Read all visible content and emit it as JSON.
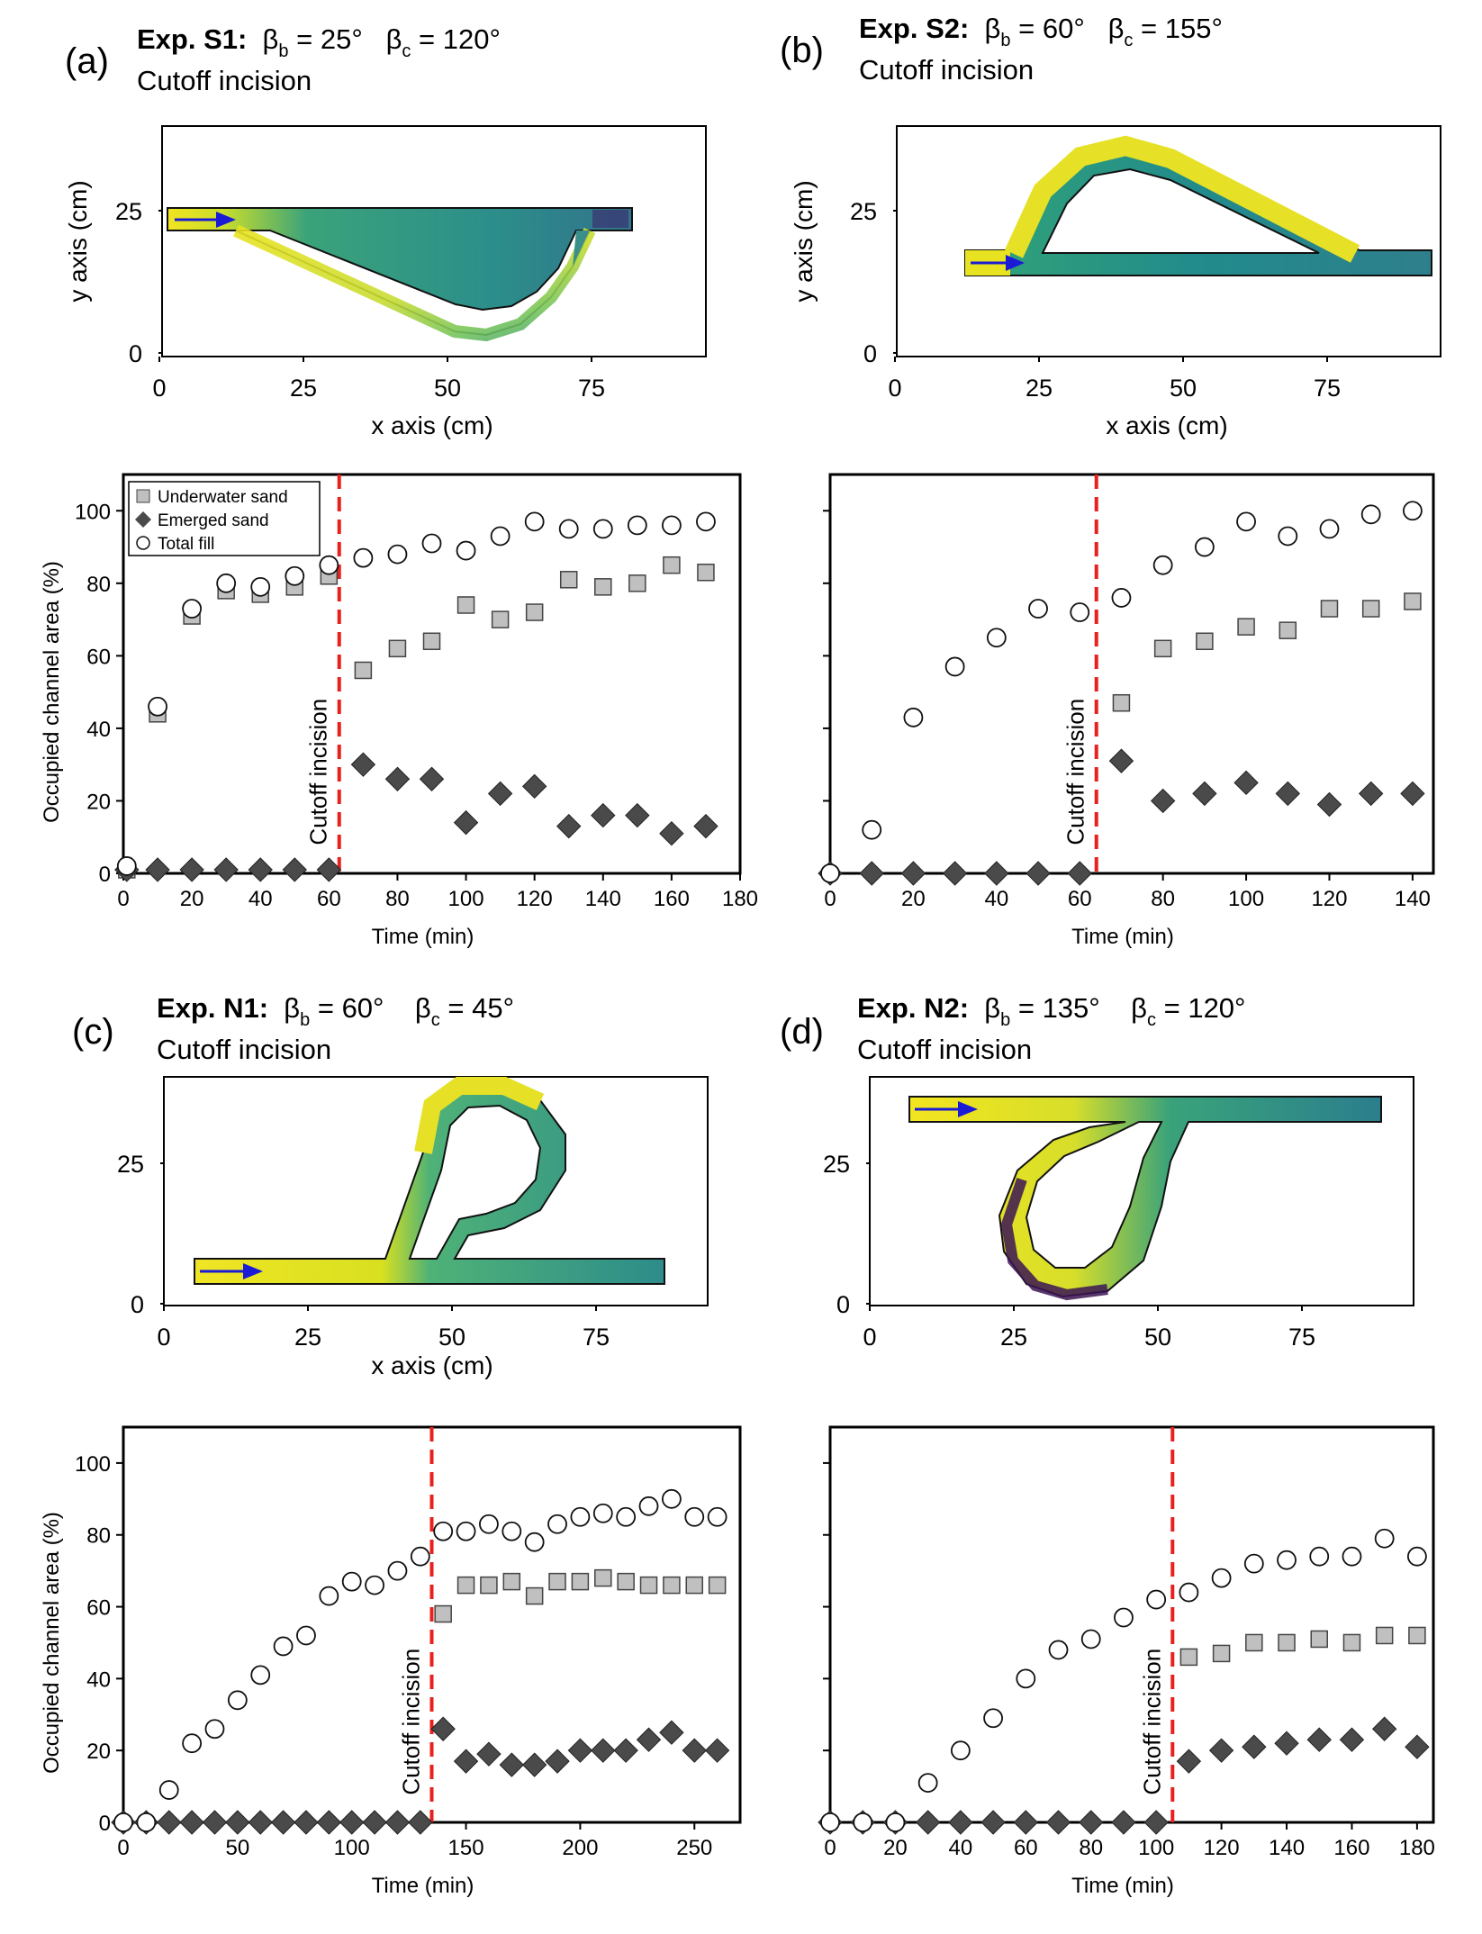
{
  "panels": [
    {
      "letter": "(a)",
      "title": {
        "exp": "Exp. S1:",
        "beta_b": "25°",
        "beta_c": "120°",
        "subtitle": "Cutoff incision"
      },
      "map": {
        "xlabel": "x axis (cm)",
        "ylabel": "y axis (cm)",
        "xticks": [
          "0",
          "25",
          "50",
          "75"
        ],
        "yticks": [
          "0",
          "25"
        ]
      }
    },
    {
      "letter": "(b)",
      "title": {
        "exp": "Exp. S2:",
        "beta_b": "60°",
        "beta_c": "155°",
        "subtitle": "Cutoff incision"
      },
      "map": {
        "xlabel": "x axis (cm)",
        "ylabel": "y axis (cm)",
        "xticks": [
          "0",
          "25",
          "50",
          "75"
        ],
        "yticks": [
          "0",
          "25"
        ]
      }
    },
    {
      "letter": "(c)",
      "title": {
        "exp": "Exp. N1:",
        "beta_b": "60°",
        "beta_c": "45°",
        "subtitle": "Cutoff incision"
      },
      "map": {
        "xlabel": "x axis (cm)",
        "ylabel": "",
        "xticks": [
          "0",
          "25",
          "50",
          "75"
        ],
        "yticks": [
          "0",
          "25"
        ]
      }
    },
    {
      "letter": "(d)",
      "title": {
        "exp": "Exp. N2:",
        "beta_b": "135°",
        "beta_c": "120°",
        "subtitle": "Cutoff incision"
      },
      "map": {
        "xlabel": "",
        "ylabel": "",
        "xticks": [
          "0",
          "25",
          "50",
          "75"
        ],
        "yticks": [
          "0",
          "25"
        ]
      }
    }
  ],
  "legend": {
    "items": [
      {
        "label": "Underwater sand",
        "marker": "square",
        "fill": "#c0c0c0"
      },
      {
        "label": "Emerged sand",
        "marker": "diamond",
        "fill": "#4a4a4a"
      },
      {
        "label": "Total fill",
        "marker": "circle",
        "fill": "#ffffff"
      }
    ]
  },
  "colors": {
    "cutoff_line": "#e8201e",
    "arrow": "#1b1bd6",
    "underwater": "#c0c0c0",
    "emerged": "#4a4a4a",
    "viridis_high": "#f5e61e",
    "viridis_mid": "#2a8f8a",
    "viridis_low": "#3b1554"
  },
  "chart_data": [
    {
      "type": "scatter",
      "panel": "a",
      "xlabel": "Time (min)",
      "ylabel": "Occupied channel area (%)",
      "xlim": [
        0,
        180
      ],
      "ylim": [
        0,
        110
      ],
      "xticks": [
        0,
        20,
        40,
        60,
        80,
        100,
        120,
        140,
        160,
        180
      ],
      "yticks": [
        0,
        20,
        40,
        60,
        80,
        100
      ],
      "cutoff": {
        "x": 63,
        "label": "Cutoff incision"
      },
      "series": [
        {
          "name": "Underwater sand",
          "x": [
            1,
            10,
            20,
            30,
            40,
            50,
            60,
            70,
            80,
            90,
            100,
            110,
            120,
            130,
            140,
            150,
            160,
            170
          ],
          "y": [
            1,
            44,
            71,
            78,
            77,
            79,
            82,
            56,
            62,
            64,
            74,
            70,
            72,
            81,
            79,
            80,
            85,
            83
          ]
        },
        {
          "name": "Emerged sand",
          "x": [
            1,
            10,
            20,
            30,
            40,
            50,
            60,
            70,
            80,
            90,
            100,
            110,
            120,
            130,
            140,
            150,
            160,
            170
          ],
          "y": [
            1,
            1,
            1,
            1,
            1,
            1,
            1,
            30,
            26,
            26,
            14,
            22,
            24,
            13,
            16,
            16,
            11,
            13
          ]
        },
        {
          "name": "Total fill",
          "x": [
            1,
            10,
            20,
            30,
            40,
            50,
            60,
            70,
            80,
            90,
            100,
            110,
            120,
            130,
            140,
            150,
            160,
            170
          ],
          "y": [
            2,
            46,
            73,
            80,
            79,
            82,
            85,
            87,
            88,
            91,
            89,
            93,
            97,
            95,
            95,
            96,
            96,
            97
          ]
        }
      ]
    },
    {
      "type": "scatter",
      "panel": "b",
      "xlabel": "Time (min)",
      "ylabel": "",
      "xlim": [
        0,
        145
      ],
      "ylim": [
        0,
        110
      ],
      "xticks": [
        0,
        20,
        40,
        60,
        80,
        100,
        120,
        140
      ],
      "yticks": [
        0,
        20,
        40,
        60,
        80,
        100
      ],
      "cutoff": {
        "x": 64,
        "label": "Cutoff incision"
      },
      "series": [
        {
          "name": "Underwater sand",
          "x": [
            70,
            80,
            90,
            100,
            110,
            120,
            130,
            140
          ],
          "y": [
            47,
            62,
            64,
            68,
            67,
            73,
            73,
            75
          ]
        },
        {
          "name": "Emerged sand",
          "x": [
            0,
            10,
            20,
            30,
            40,
            50,
            60,
            70,
            80,
            90,
            100,
            110,
            120,
            130,
            140
          ],
          "y": [
            0,
            0,
            0,
            0,
            0,
            0,
            0,
            31,
            20,
            22,
            25,
            22,
            19,
            22,
            22
          ]
        },
        {
          "name": "Total fill",
          "x": [
            0,
            10,
            20,
            30,
            40,
            50,
            60,
            70,
            80,
            90,
            100,
            110,
            120,
            130,
            140
          ],
          "y": [
            0,
            12,
            43,
            57,
            65,
            73,
            72,
            76,
            85,
            90,
            97,
            93,
            95,
            99,
            100
          ]
        }
      ]
    },
    {
      "type": "scatter",
      "panel": "c",
      "xlabel": "Time (min)",
      "ylabel": "Occupied channel area (%)",
      "xlim": [
        0,
        270
      ],
      "ylim": [
        0,
        110
      ],
      "xticks": [
        0,
        50,
        100,
        150,
        200,
        250
      ],
      "yticks": [
        0,
        20,
        40,
        60,
        80,
        100
      ],
      "cutoff": {
        "x": 135,
        "label": "Cutoff incision"
      },
      "series": [
        {
          "name": "Underwater sand",
          "x": [
            140,
            150,
            160,
            170,
            180,
            190,
            200,
            210,
            220,
            230,
            240,
            250,
            260
          ],
          "y": [
            58,
            66,
            66,
            67,
            63,
            67,
            67,
            68,
            67,
            66,
            66,
            66,
            66
          ]
        },
        {
          "name": "Emerged sand",
          "x": [
            0,
            10,
            20,
            30,
            40,
            50,
            60,
            70,
            80,
            90,
            100,
            110,
            120,
            130,
            140,
            150,
            160,
            170,
            180,
            190,
            200,
            210,
            220,
            230,
            240,
            250,
            260
          ],
          "y": [
            0,
            0,
            0,
            0,
            0,
            0,
            0,
            0,
            0,
            0,
            0,
            0,
            0,
            0,
            26,
            17,
            19,
            16,
            16,
            17,
            20,
            20,
            20,
            23,
            25,
            20,
            20
          ]
        },
        {
          "name": "Total fill",
          "x": [
            0,
            10,
            20,
            30,
            40,
            50,
            60,
            70,
            80,
            90,
            100,
            110,
            120,
            130,
            140,
            150,
            160,
            170,
            180,
            190,
            200,
            210,
            220,
            230,
            240,
            250,
            260
          ],
          "y": [
            0,
            0,
            9,
            22,
            26,
            34,
            41,
            49,
            52,
            63,
            67,
            66,
            70,
            74,
            81,
            81,
            83,
            81,
            78,
            83,
            85,
            86,
            85,
            88,
            90,
            85,
            85
          ]
        }
      ]
    },
    {
      "type": "scatter",
      "panel": "d",
      "xlabel": "Time (min)",
      "ylabel": "",
      "xlim": [
        0,
        185
      ],
      "ylim": [
        0,
        110
      ],
      "xticks": [
        0,
        20,
        40,
        60,
        80,
        100,
        120,
        140,
        160,
        180
      ],
      "yticks": [
        0,
        20,
        40,
        60,
        80,
        100
      ],
      "cutoff": {
        "x": 105,
        "label": "Cutoff incision"
      },
      "series": [
        {
          "name": "Underwater sand",
          "x": [
            110,
            120,
            130,
            140,
            150,
            160,
            170,
            180
          ],
          "y": [
            46,
            47,
            50,
            50,
            51,
            50,
            52,
            52
          ]
        },
        {
          "name": "Emerged sand",
          "x": [
            0,
            10,
            20,
            30,
            40,
            50,
            60,
            70,
            80,
            90,
            100,
            110,
            120,
            130,
            140,
            150,
            160,
            170,
            180
          ],
          "y": [
            0,
            0,
            0,
            0,
            0,
            0,
            0,
            0,
            0,
            0,
            0,
            17,
            20,
            21,
            22,
            23,
            23,
            26,
            21
          ]
        },
        {
          "name": "Total fill",
          "x": [
            0,
            10,
            20,
            30,
            40,
            50,
            60,
            70,
            80,
            90,
            100,
            110,
            120,
            130,
            140,
            150,
            160,
            170,
            180
          ],
          "y": [
            0,
            0,
            0,
            11,
            20,
            29,
            40,
            48,
            51,
            57,
            62,
            64,
            68,
            72,
            73,
            74,
            74,
            79,
            74
          ]
        }
      ]
    }
  ]
}
